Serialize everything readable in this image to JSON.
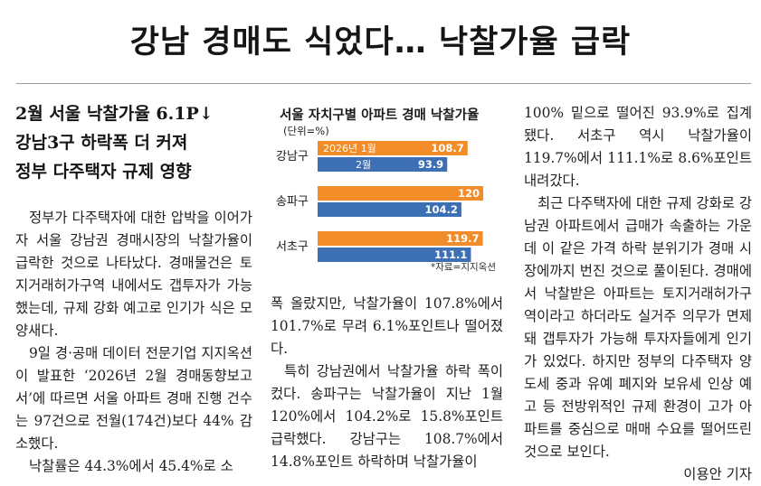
{
  "headline": "강남 경매도 식었다… 낙찰가율 급락",
  "subheads": [
    "2월 서울 낙찰가율 6.1P↓",
    "강남3구 하락폭 더 커져",
    "정부 다주택자 규제 영향"
  ],
  "column1": [
    "정부가 다주택자에 대한 압박을 이어가자 서울 강남권 경매시장의 낙찰가율이 급락한 것으로 나타났다. 경매물건은 토지거래허가구역 내에서도 갭투자가 가능했는데, 규제 강화 예고로 인기가 식은 모양새다.",
    "9일 경·공매 데이터 전문기업 지지옥션이 발표한 ‘2026년 2월 경매동향보고서’에 따르면 서울 아파트 경매 진행 건수는 97건으로 전월(174건)보다 44% 감소했다.",
    "낙찰률은 44.3%에서 45.4%로 소"
  ],
  "column2": [
    "폭 올랐지만, 낙찰가율이 107.8%에서 101.7%로 무려 6.1%포인트나 떨어졌다.",
    "특히 강남권에서 낙찰가율 하락 폭이 컸다. 송파구는 낙찰가율이 지난 1월 120%에서 104.2%로 15.8%포인트 급락했다. 강남구는 108.7%에서 14.8%포인트 하락하며 낙찰가율이"
  ],
  "column3": [
    "100% 밑으로 떨어진 93.9%로 집계됐다. 서초구 역시 낙찰가율이 119.7%에서 111.1%로 8.6%포인트 내려갔다.",
    "최근 다주택자에 대한 규제 강화로 강남권 아파트에서 급매가 속출하는 가운데 이 같은 가격 하락 분위기가 경매 시장에까지 번진 것으로 풀이된다. 경매에서 낙찰받은 아파트는 토지거래허가구역이라고 하더라도 실거주 의무가 면제돼 갭투자가 가능해 투자자들에게 인기가 있었다. 하지만 정부의 다주택자 양도세 중과 유예 폐지와 보유세 인상 예고 등 전방위적인 규제 환경이 고가 아파트를 중심으로 매매 수요를 떨어뜨린 것으로 보인다."
  ],
  "byline": "이용안 기자",
  "chart_data": {
    "type": "bar",
    "title": "서울 자치구별 아파트 경매 낙찰가율",
    "unit": "(단위=%)",
    "source": "*자료=지지옥션",
    "categories": [
      "강남구",
      "송파구",
      "서초구"
    ],
    "series": [
      {
        "name": "2026년 1월",
        "values": [
          108.7,
          120,
          119.7
        ],
        "color": "#f28c28"
      },
      {
        "name": "2월",
        "values": [
          93.9,
          104.2,
          111.1
        ],
        "color": "#3d6fb5"
      }
    ],
    "value_labels": [
      [
        "108.7",
        "120",
        "119.7"
      ],
      [
        "93.9",
        "104.2",
        "111.1"
      ]
    ],
    "xlim": [
      0,
      120
    ]
  }
}
